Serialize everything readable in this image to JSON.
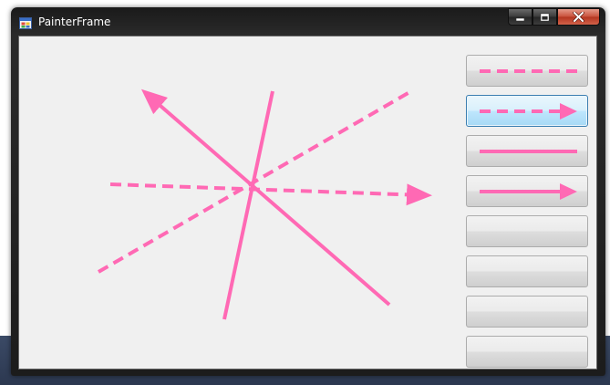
{
  "window": {
    "title": "PainterFrame",
    "icon": "app-window-icon",
    "controls": [
      "minimize-icon",
      "maximize-icon",
      "close-icon"
    ]
  },
  "canvas": {
    "stroke_color": "#ff69b4",
    "shapes": [
      {
        "kind": "arrow",
        "style": "solid"
      },
      {
        "kind": "line",
        "style": "solid"
      },
      {
        "kind": "line",
        "style": "dashed"
      },
      {
        "kind": "arrow",
        "style": "dashed"
      }
    ]
  },
  "tools": [
    {
      "name": "dashed-line-tool",
      "icon": "dashed-line-icon",
      "state": "normal"
    },
    {
      "name": "dashed-arrow-tool",
      "icon": "dashed-arrow-icon",
      "state": "focused"
    },
    {
      "name": "solid-line-tool",
      "icon": "solid-line-icon",
      "state": "normal"
    },
    {
      "name": "solid-arrow-tool",
      "icon": "solid-arrow-icon",
      "state": "normal"
    },
    {
      "name": "empty-tool-5",
      "icon": "",
      "state": "normal"
    },
    {
      "name": "empty-tool-6",
      "icon": "",
      "state": "normal"
    },
    {
      "name": "empty-tool-7",
      "icon": "",
      "state": "normal"
    },
    {
      "name": "empty-tool-8",
      "icon": "",
      "state": "normal"
    }
  ]
}
